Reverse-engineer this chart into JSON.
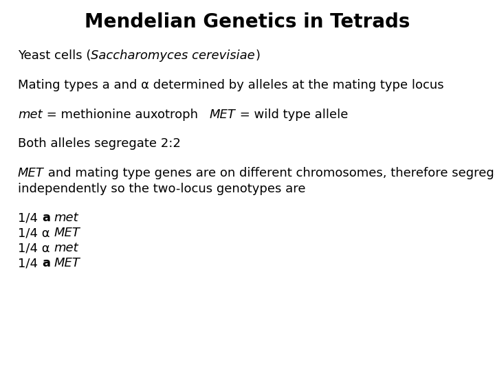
{
  "title": "Mendelian Genetics in Tetrads",
  "background_color": "#ffffff",
  "title_fontsize": 20,
  "body_fontsize": 13,
  "alpha_char": "α",
  "fig_width": 7.2,
  "fig_height": 5.4,
  "dpi": 100
}
